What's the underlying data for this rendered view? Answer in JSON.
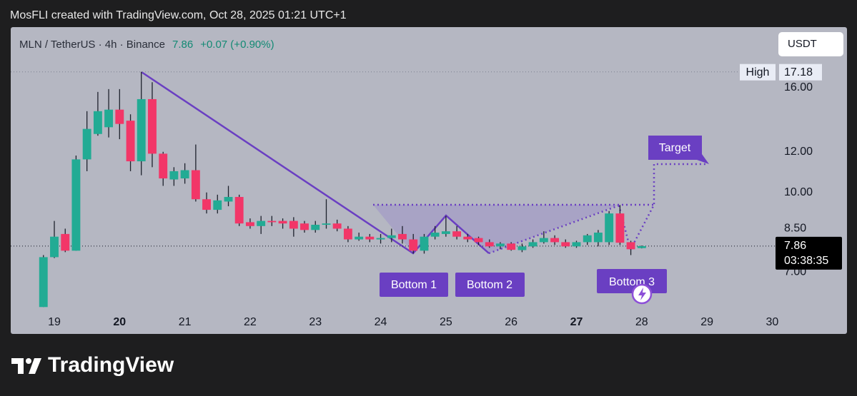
{
  "chart_data": {
    "type": "candlestick",
    "attribution": "MosFLI created with TradingView.com, Oct 28, 2025 01:21 UTC+1",
    "symbol": "MLN / TetherUS · 4h · Binance",
    "last_price": 7.86,
    "change": "+0.07 (+0.90%)",
    "currency": "USDT",
    "high_label": "High",
    "high": 17.18,
    "countdown": "03:38:35",
    "brand": "TradingView",
    "annotations": [
      "Bottom 1",
      "Bottom 2",
      "Bottom 3",
      "Target"
    ],
    "x": [
      18.833,
      19,
      19.167,
      19.333,
      19.5,
      19.667,
      19.833,
      20,
      20.167,
      20.333,
      20.5,
      20.667,
      20.833,
      21,
      21.167,
      21.333,
      21.5,
      21.667,
      21.833,
      22,
      22.167,
      22.333,
      22.5,
      22.667,
      22.833,
      23,
      23.167,
      23.333,
      23.5,
      23.667,
      23.833,
      24,
      24.167,
      24.333,
      24.5,
      24.667,
      24.833,
      25,
      25.167,
      25.333,
      25.5,
      25.667,
      25.833,
      26,
      26.167,
      26.333,
      26.5,
      26.667,
      26.833,
      27,
      27.167,
      27.333,
      27.5,
      27.667,
      27.833,
      28
    ],
    "open": [
      5.98,
      7.48,
      8.3,
      7.7,
      11.6,
      13.0,
      13.4,
      14.5,
      13.8,
      11.5,
      15.2,
      11.9,
      10.6,
      10.65,
      11.05,
      9.7,
      9.25,
      9.6,
      9.8,
      8.75,
      8.6,
      8.8,
      8.8,
      8.8,
      8.7,
      8.45,
      8.65,
      8.7,
      8.5,
      8.1,
      8.2,
      8.1,
      8.15,
      8.3,
      8.1,
      7.7,
      8.2,
      8.3,
      8.4,
      8.2,
      8.15,
      8.0,
      7.85,
      7.95,
      7.72,
      7.85,
      8.0,
      8.15,
      8.0,
      7.85,
      8.0,
      8.0,
      8.0,
      9.1,
      8.0,
      7.79
    ],
    "highs": [
      7.55,
      8.8,
      8.5,
      11.8,
      14.4,
      15.7,
      15.9,
      15.9,
      14.2,
      17.18,
      16.4,
      12.0,
      11.2,
      11.4,
      12.4,
      10.0,
      9.9,
      10.3,
      9.9,
      8.9,
      9.0,
      9.0,
      8.9,
      8.95,
      8.8,
      8.8,
      9.7,
      8.85,
      8.6,
      8.35,
      8.3,
      8.3,
      8.5,
      8.6,
      8.3,
      8.3,
      8.6,
      9.0,
      8.6,
      8.3,
      8.2,
      8.1,
      8.0,
      8.0,
      7.95,
      8.1,
      8.4,
      8.25,
      8.1,
      8.05,
      8.3,
      8.45,
      9.2,
      9.45,
      8.05,
      7.88
    ],
    "low": [
      5.98,
      7.45,
      7.65,
      7.7,
      11.0,
      12.9,
      12.8,
      12.7,
      11.0,
      10.8,
      11.2,
      10.3,
      10.3,
      10.4,
      9.6,
      9.1,
      9.1,
      9.4,
      8.6,
      8.5,
      8.3,
      8.6,
      8.5,
      8.2,
      8.35,
      8.35,
      8.5,
      8.4,
      8.0,
      8.05,
      8.0,
      7.95,
      8.0,
      7.95,
      7.6,
      7.6,
      8.1,
      8.2,
      8.1,
      8.0,
      7.9,
      7.8,
      7.75,
      7.7,
      7.65,
      7.8,
      7.95,
      7.9,
      7.8,
      7.8,
      7.9,
      7.85,
      7.9,
      7.9,
      7.55,
      7.78
    ],
    "close": [
      7.48,
      8.2,
      7.7,
      11.6,
      13.3,
      14.4,
      14.5,
      13.6,
      11.5,
      15.2,
      11.9,
      10.65,
      11.0,
      11.05,
      9.7,
      9.25,
      9.65,
      9.8,
      8.7,
      8.6,
      8.8,
      8.75,
      8.7,
      8.5,
      8.45,
      8.65,
      8.7,
      8.5,
      8.1,
      8.2,
      8.1,
      8.15,
      8.25,
      8.1,
      7.7,
      8.2,
      8.35,
      8.4,
      8.2,
      8.1,
      8.0,
      7.85,
      7.95,
      7.73,
      7.85,
      8.0,
      8.15,
      8.0,
      7.85,
      8.0,
      8.25,
      8.35,
      9.1,
      7.98,
      7.75,
      7.86
    ],
    "up_color": "#22ab94",
    "down_color": "#f23668",
    "xlim": [
      18.332,
      30.05
    ],
    "xticks": [
      19,
      20,
      21,
      22,
      23,
      24,
      25,
      26,
      27,
      28,
      29,
      30
    ],
    "bold_xticks": [
      20,
      27
    ],
    "ylim": [
      5.3,
      21.0
    ],
    "log_scale": true,
    "grid": false,
    "yticks": [
      {
        "value": 7,
        "label": "7.00"
      },
      {
        "value": 8.5,
        "label": "8.50"
      },
      {
        "value": 10,
        "label": "10.00"
      },
      {
        "value": 12,
        "label": "12.00"
      },
      {
        "value": 16,
        "label": "16.00"
      }
    ]
  }
}
